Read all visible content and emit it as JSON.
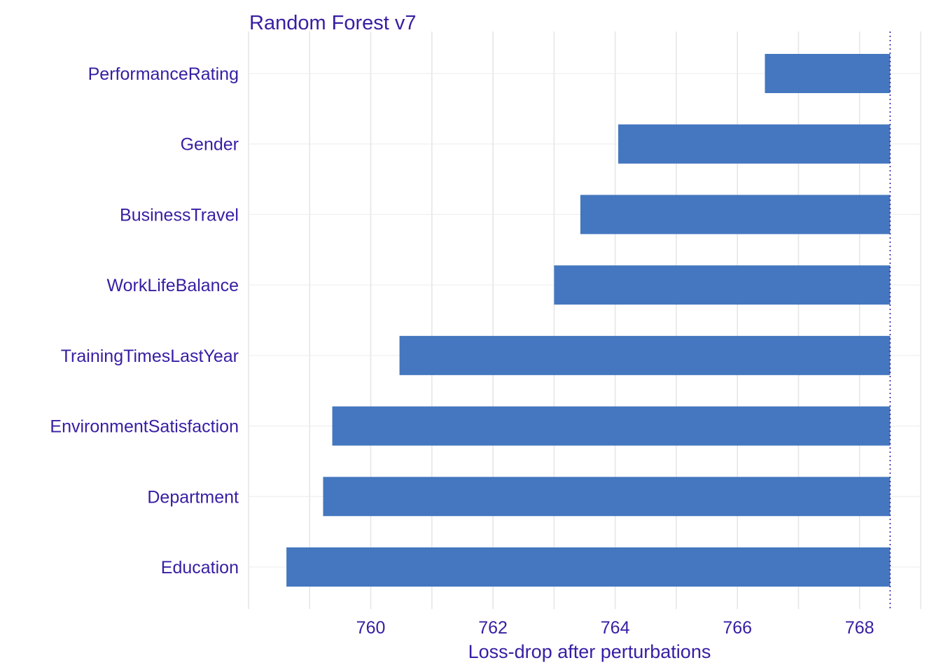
{
  "chart_data": {
    "type": "bar",
    "orientation": "horizontal",
    "title": "Random Forest v7",
    "xlabel": "Loss-drop after perturbations",
    "ylabel": "",
    "categories": [
      "PerformanceRating",
      "Gender",
      "BusinessTravel",
      "WorkLifeBalance",
      "TrainingTimesLastYear",
      "EnvironmentSatisfaction",
      "Department",
      "Education"
    ],
    "values": [
      766.45,
      764.05,
      763.43,
      763.0,
      760.47,
      759.37,
      759.22,
      758.62
    ],
    "baseline": 768.5,
    "xlim": [
      758.0,
      769.0
    ],
    "xticks": [
      760,
      762,
      764,
      766,
      768
    ],
    "grid": true,
    "legend": "none",
    "colors": {
      "bar": "#4477bf",
      "text": "#371ea3",
      "grid": "#e6e6e6",
      "baseline": "#371ea3"
    }
  }
}
